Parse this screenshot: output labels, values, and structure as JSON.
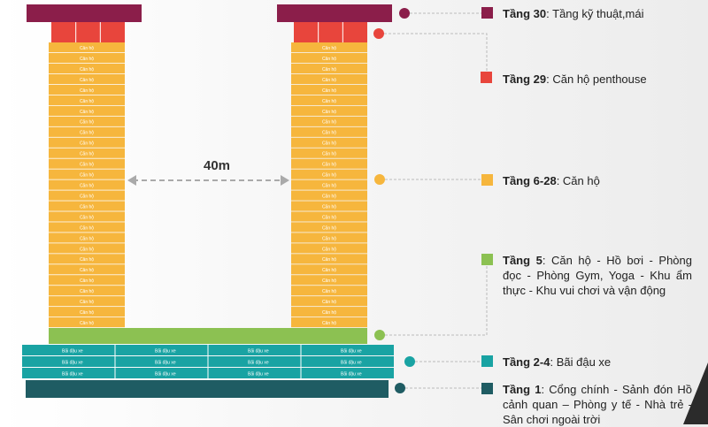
{
  "colors": {
    "roof": "#8b1e4a",
    "penthouse": "#e8453c",
    "apartment": "#f6b63d",
    "podium": "#8cc152",
    "parking": "#19a3a3",
    "ground": "#1f5c63",
    "line": "#bbbbbb"
  },
  "distance_label": "40m",
  "unit_labels": {
    "apartment": "Căn hộ",
    "parking": "Bãi đậu xe"
  },
  "legend": [
    {
      "key": "roof",
      "tier": "Tầng 30",
      "desc": "Tầng kỹ thuật,mái"
    },
    {
      "key": "penthouse",
      "tier": "Tầng 29",
      "desc": "Căn hộ penthouse"
    },
    {
      "key": "apartment",
      "tier": "Tầng 6-28",
      "desc": "Căn hộ"
    },
    {
      "key": "podium",
      "tier": "Tầng 5",
      "desc": "Căn hộ - Hồ bơi - Phòng đọc - Phòng Gym, Yoga - Khu ẩm thực - Khu vui chơi và vận động"
    },
    {
      "key": "parking",
      "tier": "Tầng 2-4",
      "desc": "Bãi đậu xe"
    },
    {
      "key": "ground",
      "tier": "Tầng 1",
      "desc": "Cổng chính - Sảnh đón Hồ cảnh quan – Phòng y tế - Nhà trẻ - Sân chơi ngoài trời"
    }
  ]
}
